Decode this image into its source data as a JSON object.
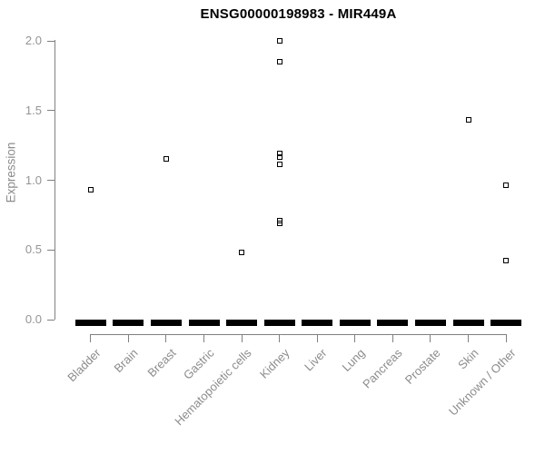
{
  "chart_data": {
    "type": "scatter",
    "title": "ENSG00000198983 - MIR449A",
    "xlabel": "",
    "ylabel": "Expression",
    "ylim": [
      0.0,
      2.0
    ],
    "ytick_labels": [
      "0.0",
      "0.5",
      "1.0",
      "1.5",
      "2.0"
    ],
    "ytick_values": [
      0.0,
      0.5,
      1.0,
      1.5,
      2.0
    ],
    "categories": [
      "Bladder",
      "Brain",
      "Breast",
      "Gastric",
      "Hematopoietic cells",
      "Kidney",
      "Liver",
      "Lung",
      "Pancreas",
      "Prostate",
      "Skin",
      "Unknown / Other"
    ],
    "points_by_category": [
      [
        0.93
      ],
      [],
      [
        1.15
      ],
      [],
      [
        0.48
      ],
      [
        2.0,
        1.85,
        1.19,
        1.16,
        1.11,
        0.71,
        0.69
      ],
      [],
      [],
      [],
      [],
      [
        1.43
      ],
      [
        0.96,
        0.42
      ]
    ],
    "zero_cluster_all_categories": true,
    "zero_cluster_value": 0.0,
    "marker": "open-square",
    "grid": false,
    "legend": false,
    "colors": {
      "point": "#000000",
      "title": "#000000",
      "axis_line": "#808080",
      "axis_text": "#8c8c8c"
    }
  }
}
